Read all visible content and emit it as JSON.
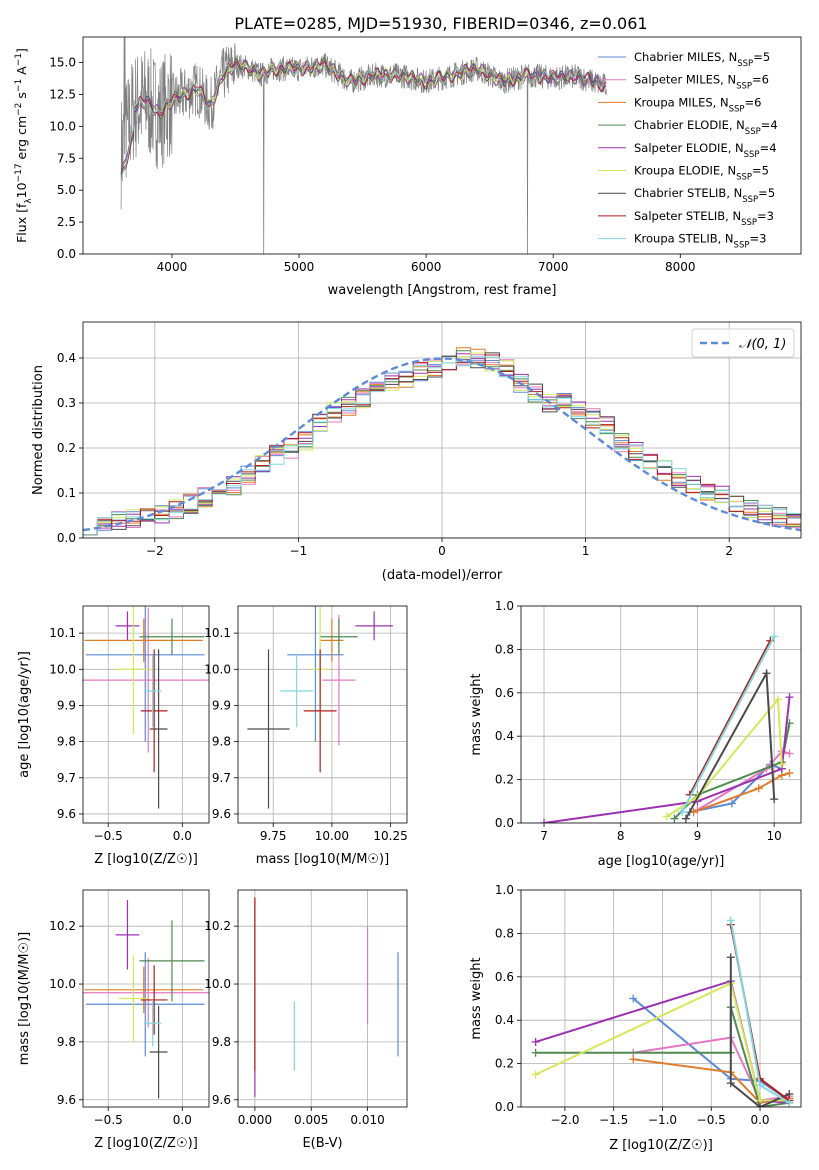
{
  "figure_title": "PLATE=0285, MJD=51930, FIBERID=0346, z=0.061",
  "models": [
    {
      "name": "Chabrier MILES",
      "nssp": "5",
      "color": "#5b8ad8"
    },
    {
      "name": "Salpeter MILES",
      "nssp": "6",
      "color": "#e377c2"
    },
    {
      "name": "Kroupa MILES",
      "nssp": "6",
      "color": "#e07b28"
    },
    {
      "name": "Chabrier ELODIE",
      "nssp": "4",
      "color": "#4f8a4f"
    },
    {
      "name": "Salpeter ELODIE",
      "nssp": "4",
      "color": "#9b30b0"
    },
    {
      "name": "Kroupa ELODIE",
      "nssp": "5",
      "color": "#d4e85a"
    },
    {
      "name": "Chabrier STELIB",
      "nssp": "5",
      "color": "#4a4a4a"
    },
    {
      "name": "Salpeter STELIB",
      "nssp": "3",
      "color": "#b01c1c"
    },
    {
      "name": "Kroupa STELIB",
      "nssp": "3",
      "color": "#7fd8dc"
    }
  ],
  "chart_data": [
    {
      "id": "spectrum",
      "type": "line",
      "xlabel": "wavelength [Angstrom, rest frame]",
      "ylabel": "Flux [f_λ10^-17 erg cm^-2 s^-1 A^-1]",
      "xlim": [
        3300,
        8950
      ],
      "ylim": [
        0,
        17
      ],
      "xticks": [
        4000,
        5000,
        6000,
        7000,
        8000
      ],
      "yticks": [
        0.0,
        2.5,
        5.0,
        7.5,
        10.0,
        12.5,
        15.0
      ],
      "grid": false,
      "legend": "right",
      "continuum": {
        "x": [
          3600,
          3700,
          3800,
          3900,
          4000,
          4100,
          4200,
          4300,
          4400,
          4500,
          4600,
          4700,
          4800,
          5000,
          5200,
          5400,
          5600,
          5800,
          6000,
          6200,
          6400,
          6600,
          6800,
          7000,
          7200,
          7400
        ],
        "y": [
          8.0,
          11.5,
          12.0,
          11.0,
          12.0,
          12.5,
          13.0,
          11.5,
          14.0,
          14.8,
          14.6,
          14.0,
          14.5,
          14.5,
          14.8,
          13.5,
          14.0,
          14.0,
          13.5,
          14.0,
          14.5,
          13.5,
          14.0,
          13.8,
          13.9,
          13.2
        ]
      }
    },
    {
      "id": "residuals",
      "type": "histogram",
      "xlabel": "(data-model)/error",
      "ylabel": "Normed distribution",
      "xlim": [
        -2.5,
        2.5
      ],
      "ylim": [
        0,
        0.48
      ],
      "xticks": [
        -2,
        -1,
        0,
        1,
        2
      ],
      "yticks": [
        0.0,
        0.1,
        0.2,
        0.3,
        0.4
      ],
      "grid": true,
      "legend": "top-right",
      "legend_label": "𝒩(0, 1)",
      "bins": [
        -2.5,
        -2.4,
        -2.3,
        -2.2,
        -2.1,
        -2.0,
        -1.9,
        -1.8,
        -1.7,
        -1.6,
        -1.5,
        -1.4,
        -1.3,
        -1.2,
        -1.1,
        -1.0,
        -0.9,
        -0.8,
        -0.7,
        -0.6,
        -0.5,
        -0.4,
        -0.3,
        -0.2,
        -0.1,
        0.0,
        0.1,
        0.2,
        0.3,
        0.4,
        0.5,
        0.6,
        0.7,
        0.8,
        0.9,
        1.0,
        1.1,
        1.2,
        1.3,
        1.4,
        1.5,
        1.6,
        1.7,
        1.8,
        1.9,
        2.0,
        2.1,
        2.2,
        2.3,
        2.4,
        2.5
      ],
      "values": [
        0.03,
        0.033,
        0.037,
        0.042,
        0.047,
        0.054,
        0.062,
        0.076,
        0.09,
        0.108,
        0.118,
        0.14,
        0.165,
        0.185,
        0.2,
        0.215,
        0.255,
        0.28,
        0.29,
        0.31,
        0.335,
        0.345,
        0.35,
        0.37,
        0.38,
        0.395,
        0.405,
        0.4,
        0.39,
        0.38,
        0.345,
        0.32,
        0.3,
        0.31,
        0.285,
        0.265,
        0.25,
        0.21,
        0.19,
        0.17,
        0.15,
        0.135,
        0.12,
        0.105,
        0.095,
        0.08,
        0.065,
        0.055,
        0.045,
        0.038
      ]
    },
    {
      "id": "age_vs_Z",
      "type": "errorbar",
      "xlabel": "Z [log10(Z/Z☉)]",
      "ylabel": "age  [log10(age/yr)]",
      "xlim": [
        -0.67,
        0.18
      ],
      "ylim": [
        9.575,
        10.175
      ],
      "xticks": [
        -0.5,
        0.0
      ],
      "yticks": [
        9.6,
        9.7,
        9.8,
        9.9,
        10.0,
        10.1
      ],
      "points": [
        {
          "x": -0.25,
          "y": 10.04,
          "xerr": 0.4,
          "yerr": 0.24
        },
        {
          "x": -0.23,
          "y": 9.97,
          "xerr": 0.45,
          "yerr": 0.2
        },
        {
          "x": -0.26,
          "y": 10.08,
          "xerr": 0.4,
          "yerr": 0.06
        },
        {
          "x": -0.07,
          "y": 10.09,
          "xerr": 0.22,
          "yerr": 0.05
        },
        {
          "x": -0.37,
          "y": 10.12,
          "xerr": 0.08,
          "yerr": 0.04
        },
        {
          "x": -0.33,
          "y": 10.0,
          "xerr": 0.12,
          "yerr": 0.18
        },
        {
          "x": -0.16,
          "y": 9.835,
          "xerr": 0.06,
          "yerr": 0.22
        },
        {
          "x": -0.19,
          "y": 9.885,
          "xerr": 0.09,
          "yerr": 0.17
        },
        {
          "x": -0.2,
          "y": 9.94,
          "xerr": 0.06,
          "yerr": 0.1
        }
      ]
    },
    {
      "id": "age_vs_mass",
      "type": "errorbar",
      "xlabel": "mass [log10(M/M☉)]",
      "ylabel": "",
      "xlim": [
        9.6,
        10.32
      ],
      "ylim": [
        9.575,
        10.175
      ],
      "xticks": [
        9.75,
        10.0,
        10.25
      ],
      "yticks": [
        9.6,
        9.7,
        9.8,
        9.9,
        10.0,
        10.1
      ],
      "points": [
        {
          "x": 9.93,
          "y": 10.04,
          "xerr": 0.12,
          "yerr": 0.24
        },
        {
          "x": 10.03,
          "y": 9.97,
          "xerr": 0.07,
          "yerr": 0.18
        },
        {
          "x": 10.0,
          "y": 10.08,
          "xerr": 0.05,
          "yerr": 0.06
        },
        {
          "x": 10.03,
          "y": 10.09,
          "xerr": 0.08,
          "yerr": 0.05
        },
        {
          "x": 10.18,
          "y": 10.12,
          "xerr": 0.08,
          "yerr": 0.04
        },
        {
          "x": 9.95,
          "y": 10.0,
          "xerr": 0.04,
          "yerr": 0.18
        },
        {
          "x": 9.73,
          "y": 9.835,
          "xerr": 0.09,
          "yerr": 0.22
        },
        {
          "x": 9.95,
          "y": 9.885,
          "xerr": 0.07,
          "yerr": 0.17
        },
        {
          "x": 9.85,
          "y": 9.94,
          "xerr": 0.07,
          "yerr": 0.1
        }
      ]
    },
    {
      "id": "weight_vs_age",
      "type": "line",
      "xlabel": "age  [log10(age/yr)]",
      "ylabel": "mass weight",
      "xlim": [
        6.7,
        10.35
      ],
      "ylim": [
        0,
        1
      ],
      "xticks": [
        7,
        8,
        9,
        10
      ],
      "yticks": [
        0.0,
        0.2,
        0.4,
        0.6,
        0.8,
        1.0
      ],
      "grid": true,
      "series": [
        {
          "x": [
            8.9,
            9.45,
            9.95,
            10.1
          ],
          "y": [
            0.05,
            0.09,
            0.27,
            0.25
          ]
        },
        {
          "x": [
            9.0,
            9.9,
            10.1,
            10.2
          ],
          "y": [
            0.06,
            0.25,
            0.33,
            0.32
          ]
        },
        {
          "x": [
            8.95,
            9.8,
            10.1,
            10.2
          ],
          "y": [
            0.05,
            0.16,
            0.22,
            0.23
          ]
        },
        {
          "x": [
            8.7,
            9.0,
            10.1,
            10.2
          ],
          "y": [
            0.02,
            0.13,
            0.28,
            0.46
          ]
        },
        {
          "x": [
            7.0,
            9.0,
            10.1,
            10.2
          ],
          "y": [
            0.0,
            0.1,
            0.25,
            0.58
          ]
        },
        {
          "x": [
            8.6,
            9.0,
            10.05,
            10.1
          ],
          "y": [
            0.03,
            0.12,
            0.57,
            0.27
          ]
        },
        {
          "x": [
            8.85,
            9.9,
            10.0
          ],
          "y": [
            0.02,
            0.69,
            0.11
          ]
        },
        {
          "x": [
            8.9,
            9.95
          ],
          "y": [
            0.13,
            0.84
          ]
        },
        {
          "x": [
            8.8,
            10.0
          ],
          "y": [
            0.05,
            0.86
          ]
        }
      ]
    },
    {
      "id": "mass_vs_Z",
      "type": "errorbar",
      "xlabel": "Z [log10(Z/Z☉)]",
      "ylabel": "mass [log10(M/M☉)]",
      "xlim": [
        -0.67,
        0.18
      ],
      "ylim": [
        9.575,
        10.325
      ],
      "xticks": [
        -0.5,
        0.0
      ],
      "yticks": [
        9.6,
        9.8,
        10.0,
        10.2
      ],
      "points": [
        {
          "x": -0.25,
          "y": 9.93,
          "xerr": 0.4,
          "yerr": 0.18
        },
        {
          "x": -0.23,
          "y": 9.97,
          "xerr": 0.45,
          "yerr": 0.12
        },
        {
          "x": -0.26,
          "y": 9.98,
          "xerr": 0.4,
          "yerr": 0.08
        },
        {
          "x": -0.07,
          "y": 10.08,
          "xerr": 0.22,
          "yerr": 0.14
        },
        {
          "x": -0.37,
          "y": 10.17,
          "xerr": 0.08,
          "yerr": 0.12
        },
        {
          "x": -0.33,
          "y": 9.95,
          "xerr": 0.1,
          "yerr": 0.15
        },
        {
          "x": -0.16,
          "y": 9.765,
          "xerr": 0.06,
          "yerr": 0.16
        },
        {
          "x": -0.19,
          "y": 9.945,
          "xerr": 0.09,
          "yerr": 0.12
        },
        {
          "x": -0.2,
          "y": 9.865,
          "xerr": 0.06,
          "yerr": 0.08
        }
      ]
    },
    {
      "id": "mass_vs_ebv",
      "type": "errorbar",
      "xlabel": "E(B-V)",
      "ylabel": "",
      "xlim": [
        -0.0015,
        0.0135
      ],
      "ylim": [
        9.575,
        10.325
      ],
      "xticks": [
        0.0,
        0.005,
        0.01
      ],
      "yticks": [
        9.6,
        9.8,
        10.0,
        10.2
      ],
      "points": [
        {
          "x": 0.0,
          "y": 9.95,
          "yerr": 0.34
        },
        {
          "x": 0.0,
          "y": 10.0,
          "yerr": 0.3
        },
        {
          "x": 0.0035,
          "y": 9.82,
          "yerr": 0.12
        },
        {
          "x": 0.01,
          "y": 10.03,
          "yerr": 0.17
        },
        {
          "x": 0.0127,
          "y": 9.93,
          "yerr": 0.18
        }
      ]
    },
    {
      "id": "weight_vs_Z",
      "type": "line",
      "xlabel": "Z [log10(Z/Z☉)]",
      "ylabel": "mass weight",
      "xlim": [
        -2.45,
        0.42
      ],
      "ylim": [
        0,
        1
      ],
      "xticks": [
        -2.0,
        -1.5,
        -1.0,
        -0.5,
        0.0
      ],
      "yticks": [
        0.0,
        0.2,
        0.4,
        0.6,
        0.8,
        1.0
      ],
      "grid": true,
      "series": [
        {
          "x": [
            -1.3,
            -0.3,
            0.0,
            0.3
          ],
          "y": [
            0.5,
            0.13,
            0.12,
            0.03
          ]
        },
        {
          "x": [
            -1.3,
            -0.3,
            0.0,
            0.3
          ],
          "y": [
            0.25,
            0.32,
            0.03,
            0.05
          ]
        },
        {
          "x": [
            -1.3,
            -0.3,
            0.0,
            0.3
          ],
          "y": [
            0.22,
            0.16,
            0.02,
            0.04
          ]
        },
        {
          "x": [
            -2.3,
            -0.3,
            -0.3,
            0.0,
            0.3
          ],
          "y": [
            0.25,
            0.25,
            0.46,
            0.0,
            0.02
          ]
        },
        {
          "x": [
            -2.3,
            -0.3,
            0.0,
            0.3
          ],
          "y": [
            0.3,
            0.58,
            0.03,
            0.02
          ]
        },
        {
          "x": [
            -2.3,
            -0.3,
            0.0,
            0.3
          ],
          "y": [
            0.15,
            0.57,
            0.03,
            0.03
          ]
        },
        {
          "x": [
            -0.3,
            -0.3,
            0.0,
            0.3
          ],
          "y": [
            0.69,
            0.11,
            0.0,
            0.06
          ]
        },
        {
          "x": [
            -0.3,
            0.0,
            0.3
          ],
          "y": [
            0.84,
            0.13,
            0.03
          ]
        },
        {
          "x": [
            -0.3,
            0.0,
            0.3
          ],
          "y": [
            0.86,
            0.1,
            0.02
          ]
        }
      ]
    }
  ]
}
